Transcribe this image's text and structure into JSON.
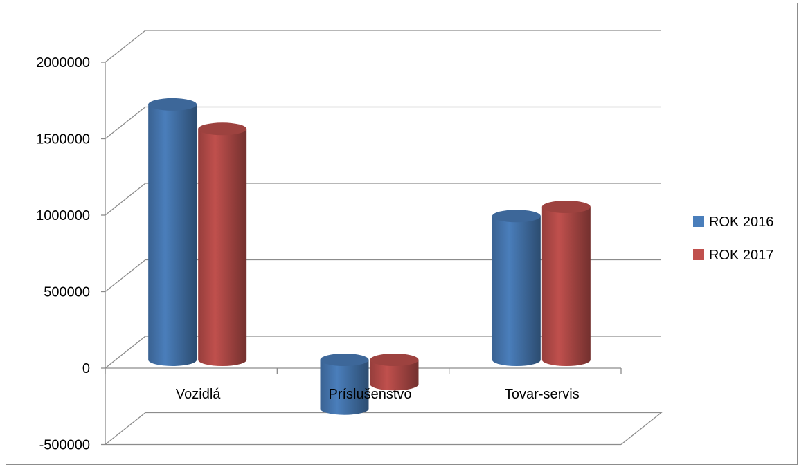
{
  "chart_data": {
    "type": "bar",
    "title": "",
    "xlabel": "",
    "ylabel": "",
    "categories": [
      "Vozidlá",
      "Príslušenstvo",
      "Tovar-servis"
    ],
    "series": [
      {
        "name": "ROK 2016",
        "values": [
          1670000,
          -320000,
          940000
        ],
        "color": "#4a7ebb"
      },
      {
        "name": "ROK 2017",
        "values": [
          1510000,
          -160000,
          1000000
        ],
        "color": "#c0504d"
      }
    ],
    "ylim": [
      -500000,
      2000000
    ],
    "yticks": [
      "2000000",
      "1500000",
      "1000000",
      "500000",
      "0",
      "-500000"
    ],
    "ytick_values": [
      2000000,
      1500000,
      1000000,
      500000,
      0,
      -500000
    ],
    "grid": true,
    "style": "3d-cylinder",
    "legend_position": "right"
  }
}
